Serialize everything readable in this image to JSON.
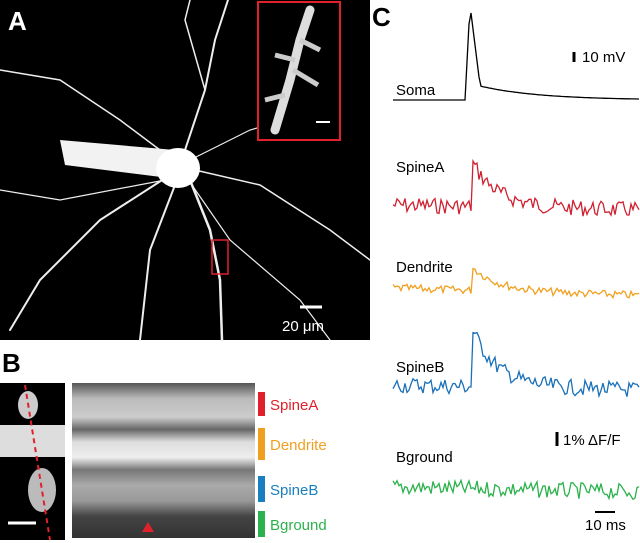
{
  "panels": {
    "a": {
      "label": "A",
      "scale_bar": "20 μm"
    },
    "b": {
      "label": "B",
      "rows": [
        "SpineA",
        "Dendrite",
        "SpineB",
        "Bground"
      ]
    },
    "c": {
      "label": "C",
      "traces": [
        "Soma",
        "SpineA",
        "Dendrite",
        "SpineB",
        "Bground"
      ],
      "voltage_scale": "10 mV",
      "fluorescence_scale": "1% ΔF/F",
      "time_scale": "10 ms"
    }
  }
}
